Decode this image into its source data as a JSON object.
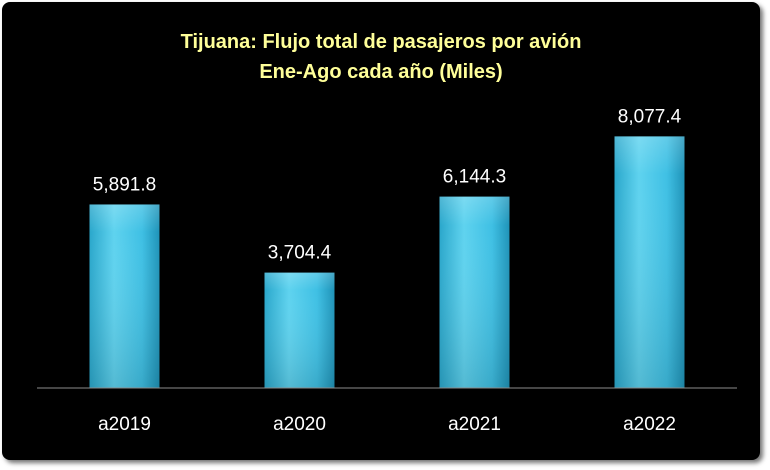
{
  "chart_data": {
    "type": "bar",
    "title": "Tijuana: Flujo total de pasajeros por avión",
    "subtitle": "Ene-Ago cada año (Miles)",
    "categories": [
      "a2019",
      "a2020",
      "a2021",
      "a2022"
    ],
    "values": [
      5891.8,
      3704.4,
      6144.3,
      8077.4
    ],
    "value_labels": [
      "5,891.8",
      "3,704.4",
      "6,144.3",
      "8,077.4"
    ],
    "ylim": [
      0,
      10000
    ],
    "grid": false,
    "legend": "none",
    "colors": {
      "background": "#000000",
      "bar_top": "#5fd3ef",
      "bar_bottom": "#2aa7cb",
      "title": "#ffff99",
      "text": "#ffffff",
      "axis": "#8c8c8c"
    }
  }
}
